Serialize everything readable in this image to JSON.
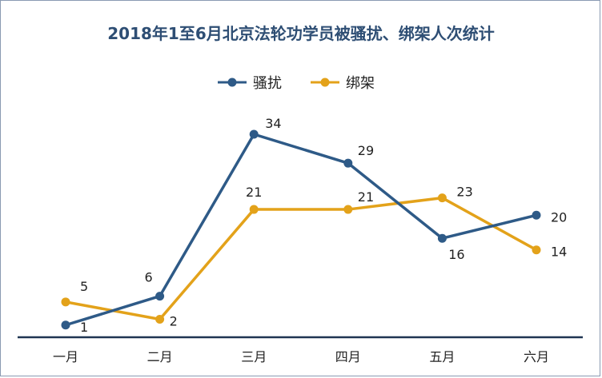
{
  "chart_data": {
    "type": "line",
    "title": "2018年1至6月北京法轮功学员被骚扰、绑架人次统计",
    "categories": [
      "一月",
      "二月",
      "三月",
      "四月",
      "五月",
      "六月"
    ],
    "series": [
      {
        "name": "骚扰",
        "values": [
          1,
          6,
          34,
          29,
          16,
          20
        ],
        "color": "#2e5a87"
      },
      {
        "name": "绑架",
        "values": [
          5,
          2,
          21,
          21,
          23,
          14
        ],
        "color": "#e3a21a"
      }
    ],
    "ylim": [
      0,
      35
    ],
    "grid": false,
    "legend": "top-center"
  }
}
